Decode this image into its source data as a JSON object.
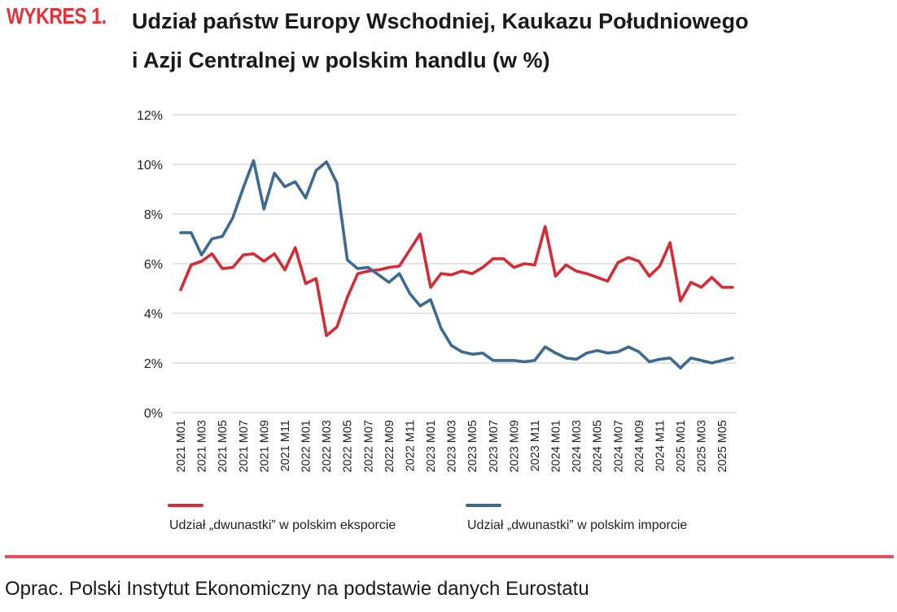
{
  "figure_label": "WYKRES 1.",
  "source": "Oprac. Polski Instytut Ekonomiczny na podstawie danych Eurostatu",
  "colors": {
    "accent": "#e0333a",
    "export": "#d52b35",
    "import": "#3d6a90",
    "grid": "#c8c8c8",
    "divider": "#e0555a"
  },
  "chart_data": {
    "type": "line",
    "title_lines": [
      "Udział państw Europy Wschodniej, Kaukazu Południowego",
      "i Azji Centralnej w polskim handlu (w %)"
    ],
    "xlabel": "",
    "ylabel": "",
    "ylim": [
      0,
      12
    ],
    "yticks": [
      0,
      2,
      4,
      6,
      8,
      10,
      12
    ],
    "ytick_labels": [
      "0%",
      "2%",
      "4%",
      "6%",
      "8%",
      "10%",
      "12%"
    ],
    "grid": true,
    "legend_position": "bottom",
    "categories": [
      "2021 M01",
      "2021 M02",
      "2021 M03",
      "2021 M04",
      "2021 M05",
      "2021 M06",
      "2021 M07",
      "2021 M08",
      "2021 M09",
      "2021 M10",
      "2021 M11",
      "2021 M12",
      "2022 M01",
      "2022 M02",
      "2022 M03",
      "2022 M04",
      "2022 M05",
      "2022 M06",
      "2022 M07",
      "2022 M08",
      "2022 M09",
      "2022 M10",
      "2022 M11",
      "2022 M12",
      "2023 M01",
      "2023 M02",
      "2023 M03",
      "2023 M04",
      "2023 M05",
      "2023 M06",
      "2023 M07",
      "2023 M08",
      "2023 M09",
      "2023 M10",
      "2023 M11",
      "2023 M12",
      "2024 M01",
      "2024 M02",
      "2024 M03",
      "2024 M04",
      "2024 M05",
      "2024 M06",
      "2024 M07",
      "2024 M08",
      "2024 M09",
      "2024 M10",
      "2024 M11",
      "2024 M12",
      "2025 M01",
      "2025 M02",
      "2025 M03",
      "2025 M04",
      "2025 M05",
      "2025 M06"
    ],
    "xtick_labels": [
      "2021 M01",
      "2021 M03",
      "2021 M05",
      "2021 M07",
      "2021 M09",
      "2021 M11",
      "2022 M01",
      "2022 M03",
      "2022 M05",
      "2022 M07",
      "2022 M09",
      "2022 M11",
      "2023 M01",
      "2023 M03",
      "2023 M05",
      "2023 M07",
      "2023 M09",
      "2023 M11",
      "2024 M01",
      "2024 M03",
      "2024 M05",
      "2024 M07",
      "2024 M09",
      "2024 M11",
      "2025 M01",
      "2025 M03",
      "2025 M05"
    ],
    "series": [
      {
        "name": "Udział „dwunastki” w polskim eksporcie",
        "color": "#d52b35",
        "values": [
          4.95,
          5.95,
          6.1,
          6.4,
          5.8,
          5.85,
          6.35,
          6.4,
          6.1,
          6.4,
          5.75,
          6.65,
          5.2,
          5.4,
          3.1,
          3.45,
          4.65,
          5.6,
          5.7,
          5.75,
          5.85,
          5.9,
          6.55,
          7.2,
          5.05,
          5.6,
          5.55,
          5.7,
          5.6,
          5.85,
          6.2,
          6.2,
          5.85,
          6.0,
          5.95,
          7.5,
          5.5,
          5.95,
          5.7,
          5.6,
          5.45,
          5.3,
          6.05,
          6.25,
          6.1,
          5.5,
          5.9,
          6.85,
          4.5,
          5.25,
          5.05,
          5.45,
          5.05,
          5.05
        ]
      },
      {
        "name": "Udział „dwunastki” w polskim imporcie",
        "color": "#3d6a90",
        "values": [
          7.25,
          7.25,
          6.35,
          7.0,
          7.1,
          7.85,
          9.05,
          10.15,
          8.2,
          9.65,
          9.1,
          9.3,
          8.65,
          9.75,
          10.1,
          9.25,
          6.15,
          5.8,
          5.85,
          5.55,
          5.25,
          5.6,
          4.8,
          4.3,
          4.55,
          3.4,
          2.7,
          2.45,
          2.35,
          2.4,
          2.1,
          2.1,
          2.1,
          2.05,
          2.1,
          2.65,
          2.4,
          2.2,
          2.15,
          2.4,
          2.5,
          2.4,
          2.45,
          2.65,
          2.45,
          2.05,
          2.15,
          2.2,
          1.8,
          2.2,
          2.1,
          2.0,
          2.1,
          2.2
        ]
      }
    ]
  }
}
